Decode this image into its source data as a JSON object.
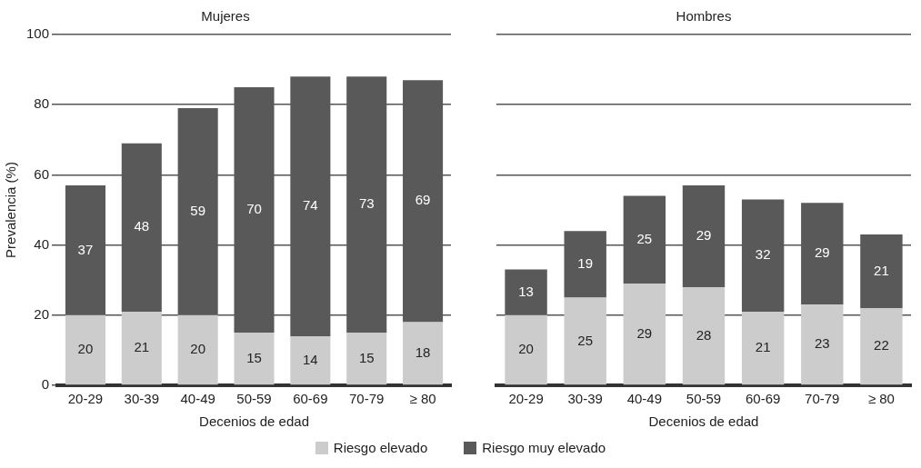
{
  "chart_data": [
    {
      "type": "bar",
      "title": "Mujeres",
      "xlabel": "Decenios de edad",
      "ylabel": "Prevalencia (%)",
      "categories": [
        "20-29",
        "30-39",
        "40-49",
        "50-59",
        "60-69",
        "70-79",
        "≥ 80"
      ],
      "stacked": true,
      "data_labels": true,
      "grid": "y",
      "legend": "bottom",
      "ylim": [
        0,
        100
      ],
      "yticks": [
        0,
        20,
        40,
        60,
        80,
        100
      ],
      "series": [
        {
          "name": "Riesgo elevado",
          "color": "#cccccc",
          "values": [
            20,
            21,
            20,
            15,
            14,
            15,
            18
          ]
        },
        {
          "name": "Riesgo muy elevado",
          "color": "#595959",
          "values": [
            37,
            48,
            59,
            70,
            74,
            73,
            69
          ]
        }
      ]
    },
    {
      "type": "bar",
      "title": "Hombres",
      "xlabel": "Decenios de edad",
      "categories": [
        "20-29",
        "30-39",
        "40-49",
        "50-59",
        "60-69",
        "70-79",
        "≥ 80"
      ],
      "stacked": true,
      "data_labels": true,
      "grid": "y",
      "tick_labels": "x",
      "ylim": [
        0,
        100
      ],
      "yticks": [
        0,
        20,
        40,
        60,
        80,
        100
      ],
      "series": [
        {
          "color": "#cccccc",
          "values": [
            20,
            25,
            29,
            28,
            21,
            23,
            22
          ]
        },
        {
          "color": "#595959",
          "values": [
            13,
            19,
            25,
            29,
            32,
            29,
            21
          ]
        }
      ]
    }
  ]
}
